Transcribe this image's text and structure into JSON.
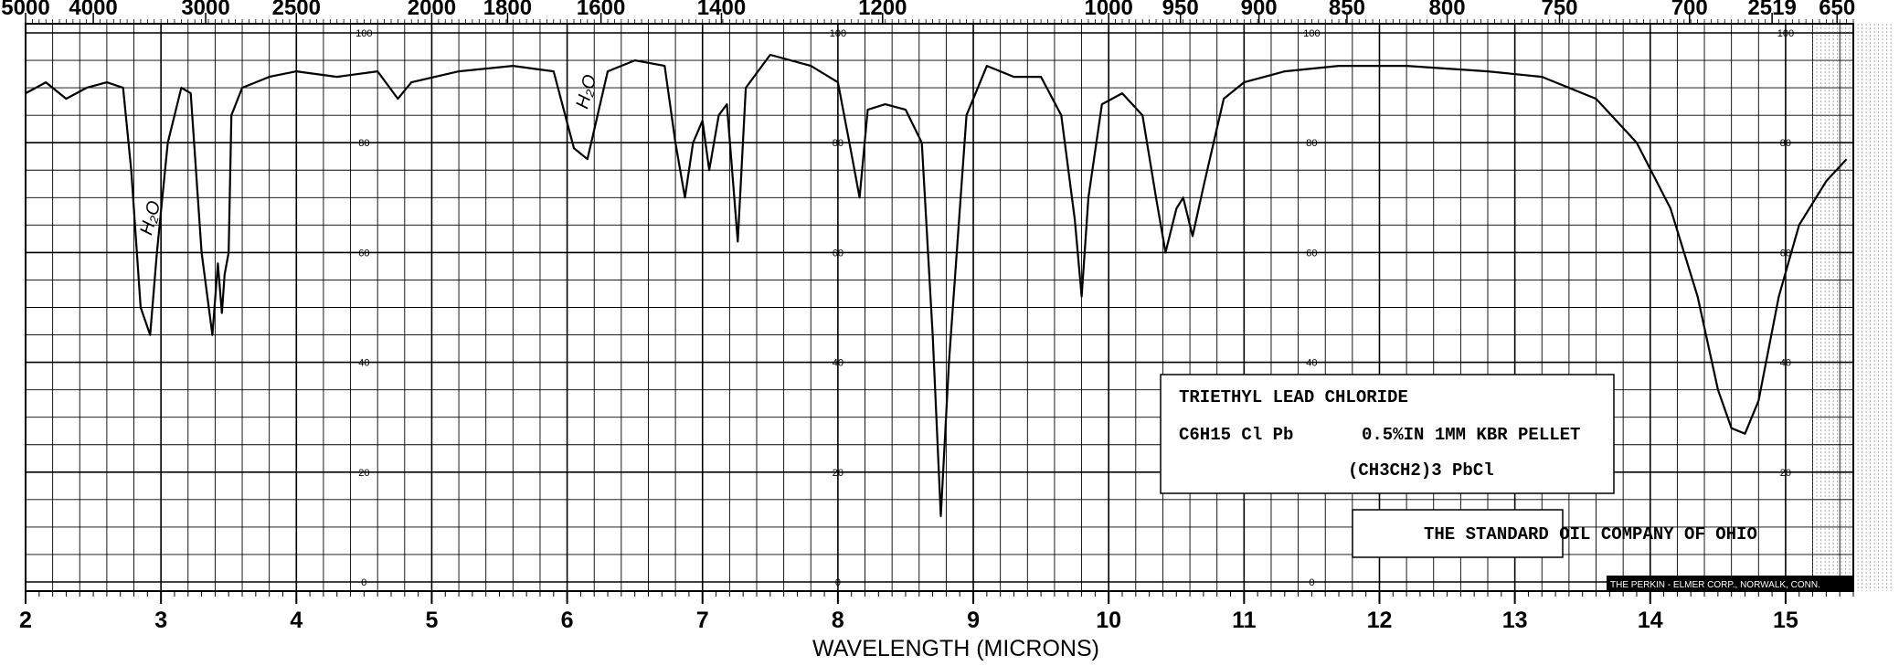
{
  "chart_data": {
    "type": "line",
    "title": "",
    "xlabel": "WAVELENGTH (MICRONS)",
    "ylabel": "",
    "xlim": [
      2,
      15.5
    ],
    "ylim": [
      0,
      100
    ],
    "grid": true,
    "x_ticks": [
      "2",
      "3",
      "4",
      "5",
      "6",
      "7",
      "8",
      "9",
      "10",
      "11",
      "12",
      "13",
      "14",
      "15"
    ],
    "top_ticks": [
      {
        "label": "5000",
        "x": 2.0
      },
      {
        "label": "4000",
        "x": 2.5
      },
      {
        "label": "3000",
        "x": 3.33
      },
      {
        "label": "2500",
        "x": 4.0
      },
      {
        "label": "2000",
        "x": 5.0
      },
      {
        "label": "1800",
        "x": 5.56
      },
      {
        "label": "1600",
        "x": 6.25
      },
      {
        "label": "1400",
        "x": 7.14
      },
      {
        "label": "1200",
        "x": 8.33
      },
      {
        "label": "1000",
        "x": 10.0
      },
      {
        "label": "950",
        "x": 10.53
      },
      {
        "label": "900",
        "x": 11.11
      },
      {
        "label": "850",
        "x": 11.76
      },
      {
        "label": "800",
        "x": 12.5
      },
      {
        "label": "750",
        "x": 13.33
      },
      {
        "label": "700",
        "x": 14.29
      },
      {
        "label": "2519",
        "x": 14.9
      },
      {
        "label": "650",
        "x": 15.38
      }
    ],
    "inner_scales": [
      {
        "x": 4.5,
        "labels": [
          "100",
          "80",
          "60",
          "40",
          "20",
          "0"
        ],
        "values": [
          100,
          80,
          60,
          40,
          20,
          0
        ]
      },
      {
        "x": 8.0,
        "labels": [
          "100",
          "80",
          "60",
          "40",
          "20",
          "0"
        ],
        "values": [
          100,
          80,
          60,
          40,
          20,
          0
        ]
      },
      {
        "x": 11.5,
        "labels": [
          "100",
          "80",
          "60",
          "40",
          "20",
          "0"
        ],
        "values": [
          100,
          80,
          60,
          40,
          20,
          0
        ]
      },
      {
        "x": 15.0,
        "labels": [
          "100",
          "80",
          "60",
          "40",
          "20",
          "0"
        ],
        "values": [
          100,
          80,
          60,
          40,
          20,
          0
        ]
      }
    ],
    "annotations": [
      {
        "text": "H₂O",
        "x": 2.93,
        "y": 63
      },
      {
        "text": "H₂O",
        "x": 6.15,
        "y": 86
      }
    ],
    "series": [
      {
        "points": [
          [
            2.0,
            89
          ],
          [
            2.15,
            91
          ],
          [
            2.3,
            88
          ],
          [
            2.45,
            90
          ],
          [
            2.6,
            91
          ],
          [
            2.72,
            90
          ],
          [
            2.78,
            75
          ],
          [
            2.85,
            50
          ],
          [
            2.92,
            45
          ],
          [
            2.97,
            60
          ],
          [
            3.05,
            80
          ],
          [
            3.15,
            90
          ],
          [
            3.22,
            89
          ],
          [
            3.3,
            60
          ],
          [
            3.38,
            45
          ],
          [
            3.42,
            58
          ],
          [
            3.45,
            49
          ],
          [
            3.47,
            56
          ],
          [
            3.5,
            60
          ],
          [
            3.52,
            85
          ],
          [
            3.6,
            90
          ],
          [
            3.8,
            92
          ],
          [
            4.0,
            93
          ],
          [
            4.3,
            92
          ],
          [
            4.6,
            93
          ],
          [
            4.75,
            88
          ],
          [
            4.85,
            91
          ],
          [
            5.2,
            93
          ],
          [
            5.6,
            94
          ],
          [
            5.9,
            93
          ],
          [
            6.05,
            79
          ],
          [
            6.15,
            77
          ],
          [
            6.3,
            93
          ],
          [
            6.5,
            95
          ],
          [
            6.72,
            94
          ],
          [
            6.8,
            80
          ],
          [
            6.87,
            70
          ],
          [
            6.93,
            80
          ],
          [
            7.0,
            84
          ],
          [
            7.05,
            75
          ],
          [
            7.12,
            85
          ],
          [
            7.18,
            87
          ],
          [
            7.26,
            62
          ],
          [
            7.32,
            90
          ],
          [
            7.5,
            96
          ],
          [
            7.8,
            94
          ],
          [
            8.0,
            91
          ],
          [
            8.1,
            78
          ],
          [
            8.16,
            70
          ],
          [
            8.22,
            86
          ],
          [
            8.35,
            87
          ],
          [
            8.5,
            86
          ],
          [
            8.62,
            80
          ],
          [
            8.7,
            45
          ],
          [
            8.76,
            12
          ],
          [
            8.82,
            40
          ],
          [
            8.95,
            85
          ],
          [
            9.1,
            94
          ],
          [
            9.3,
            92
          ],
          [
            9.5,
            92
          ],
          [
            9.65,
            85
          ],
          [
            9.75,
            66
          ],
          [
            9.8,
            52
          ],
          [
            9.85,
            70
          ],
          [
            9.95,
            87
          ],
          [
            10.1,
            89
          ],
          [
            10.25,
            85
          ],
          [
            10.35,
            70
          ],
          [
            10.42,
            60
          ],
          [
            10.5,
            68
          ],
          [
            10.55,
            70
          ],
          [
            10.62,
            63
          ],
          [
            10.7,
            72
          ],
          [
            10.85,
            88
          ],
          [
            11.0,
            91
          ],
          [
            11.3,
            93
          ],
          [
            11.7,
            94
          ],
          [
            12.2,
            94
          ],
          [
            12.8,
            93
          ],
          [
            13.2,
            92
          ],
          [
            13.6,
            88
          ],
          [
            13.9,
            80
          ],
          [
            14.15,
            68
          ],
          [
            14.35,
            52
          ],
          [
            14.5,
            35
          ],
          [
            14.6,
            28
          ],
          [
            14.7,
            27
          ],
          [
            14.8,
            33
          ],
          [
            14.95,
            52
          ],
          [
            15.1,
            65
          ],
          [
            15.3,
            73
          ],
          [
            15.45,
            77
          ]
        ]
      }
    ],
    "label_box": {
      "title": "TRIETHYL LEAD CHLORIDE",
      "formula": "C6H15 Cl Pb",
      "sample": "0.5%IN 1MM KBR PELLET",
      "structure": "(CH3CH2)3 PbCl",
      "source": "THE STANDARD OIL COMPANY OF OHIO"
    },
    "footer_credit": "THE PERKIN - ELMER CORP., NORWALK, CONN."
  }
}
